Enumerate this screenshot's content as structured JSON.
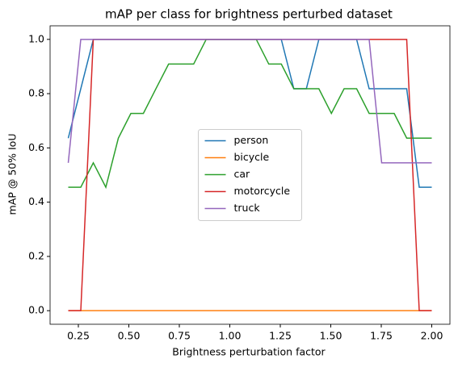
{
  "chart_data": {
    "type": "line",
    "title": "mAP per class for brightness perturbed dataset",
    "x_label": "Brightness perturbation factor",
    "y_label": "mAP @ 50% IoU",
    "x": [
      0.2,
      0.262,
      0.324,
      0.386,
      0.448,
      0.51,
      0.572,
      0.634,
      0.697,
      0.759,
      0.821,
      0.883,
      0.945,
      1.007,
      1.069,
      1.131,
      1.193,
      1.255,
      1.317,
      1.379,
      1.441,
      1.503,
      1.566,
      1.628,
      1.69,
      1.752,
      1.814,
      1.876,
      1.938,
      2.0
    ],
    "series": [
      {
        "name": "person",
        "color": "#1f77b4",
        "values": [
          0.636,
          0.818,
          1.0,
          1.0,
          1.0,
          1.0,
          1.0,
          1.0,
          1.0,
          1.0,
          1.0,
          1.0,
          1.0,
          1.0,
          1.0,
          1.0,
          1.0,
          1.0,
          0.818,
          0.818,
          1.0,
          1.0,
          1.0,
          1.0,
          0.818,
          0.818,
          0.818,
          0.818,
          0.455,
          0.455
        ]
      },
      {
        "name": "bicycle",
        "color": "#ff7f0e",
        "values": [
          0,
          0,
          0,
          0,
          0,
          0,
          0,
          0,
          0,
          0,
          0,
          0,
          0,
          0,
          0,
          0,
          0,
          0,
          0,
          0,
          0,
          0,
          0,
          0,
          0,
          0,
          0,
          0,
          0,
          0
        ]
      },
      {
        "name": "car",
        "color": "#2ca02c",
        "values": [
          0.455,
          0.455,
          0.545,
          0.455,
          0.636,
          0.727,
          0.727,
          0.818,
          0.909,
          0.909,
          0.909,
          1.0,
          1.0,
          1.0,
          1.0,
          1.0,
          0.909,
          0.909,
          0.818,
          0.818,
          0.818,
          0.727,
          0.818,
          0.818,
          0.727,
          0.727,
          0.727,
          0.636,
          0.636,
          0.636
        ]
      },
      {
        "name": "motorcycle",
        "color": "#d62728",
        "values": [
          0,
          0,
          1.0,
          1.0,
          1.0,
          1.0,
          1.0,
          1.0,
          1.0,
          1.0,
          1.0,
          1.0,
          1.0,
          1.0,
          1.0,
          1.0,
          1.0,
          1.0,
          1.0,
          1.0,
          1.0,
          1.0,
          1.0,
          1.0,
          1.0,
          1.0,
          1.0,
          1.0,
          0,
          0
        ]
      },
      {
        "name": "truck",
        "color": "#9467bd",
        "values": [
          0.545,
          1.0,
          1.0,
          1.0,
          1.0,
          1.0,
          1.0,
          1.0,
          1.0,
          1.0,
          1.0,
          1.0,
          1.0,
          1.0,
          1.0,
          1.0,
          1.0,
          1.0,
          1.0,
          1.0,
          1.0,
          1.0,
          1.0,
          1.0,
          1.0,
          0.545,
          0.545,
          0.545,
          0.545,
          0.545
        ]
      }
    ],
    "xlim": [
      0.11,
      2.09
    ],
    "ylim": [
      -0.05,
      1.05
    ],
    "xticks": [
      {
        "value": 0.25,
        "label": "0.25"
      },
      {
        "value": 0.5,
        "label": "0.50"
      },
      {
        "value": 0.75,
        "label": "0.75"
      },
      {
        "value": 1,
        "label": "1.00"
      },
      {
        "value": 1.25,
        "label": "1.25"
      },
      {
        "value": 1.5,
        "label": "1.50"
      },
      {
        "value": 1.75,
        "label": "1.75"
      },
      {
        "value": 2,
        "label": "2.00"
      }
    ],
    "yticks": [
      {
        "value": 0,
        "label": "0.0"
      },
      0.2,
      0.4,
      0.6,
      0.8,
      {
        "value": 1,
        "label": "1.0"
      }
    ],
    "legend": "center"
  }
}
